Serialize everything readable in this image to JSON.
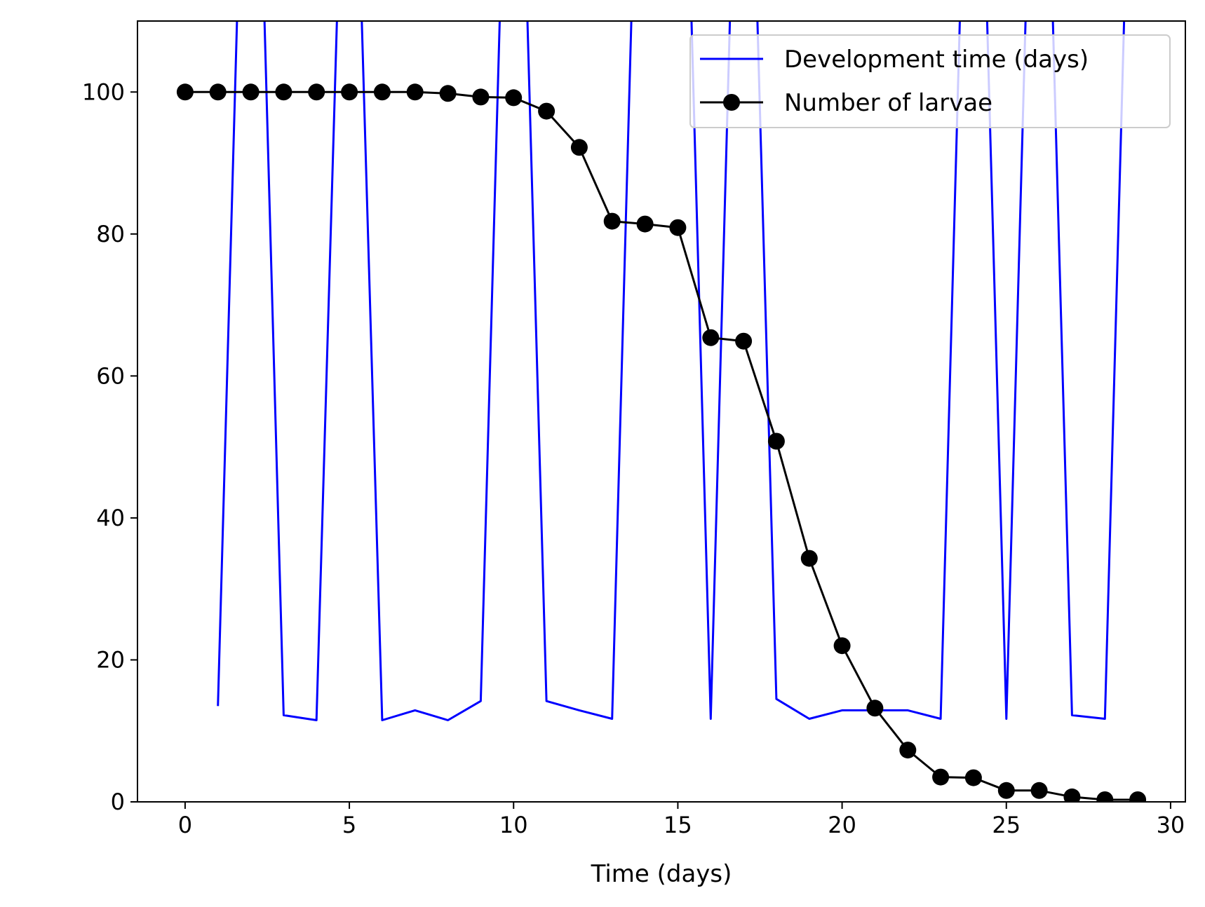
{
  "chart_data": {
    "type": "line",
    "title": "",
    "xlabel": "Time (days)",
    "ylabel": "",
    "xlim": [
      -1.45,
      30.45
    ],
    "ylim": [
      0,
      110
    ],
    "xticks": [
      0,
      5,
      10,
      15,
      20,
      25,
      30
    ],
    "yticks": [
      0,
      20,
      40,
      60,
      80,
      100
    ],
    "grid": false,
    "legend_position": "top-right",
    "series": [
      {
        "name": "Development time (days)",
        "color": "#0000ff",
        "marker": "none",
        "x": [
          1,
          2,
          3,
          4,
          5,
          6,
          7,
          8,
          9,
          10,
          11,
          12,
          13,
          14,
          15,
          16,
          17,
          18,
          19,
          20,
          21,
          22,
          23,
          24,
          25,
          26,
          27,
          28,
          29
        ],
        "y": [
          13.5,
          180,
          12.2,
          11.5,
          170,
          11.5,
          12.9,
          11.5,
          14.2,
          180,
          14.2,
          12.9,
          11.7,
          180,
          180,
          11.7,
          180,
          14.5,
          11.7,
          12.9,
          12.9,
          12.9,
          11.7,
          180,
          11.7,
          180,
          12.2,
          11.7,
          180
        ]
      },
      {
        "name": "Number of larvae",
        "color": "#000000",
        "marker": "circle",
        "x": [
          0,
          1,
          2,
          3,
          4,
          5,
          6,
          7,
          8,
          9,
          10,
          11,
          12,
          13,
          14,
          15,
          16,
          17,
          18,
          19,
          20,
          21,
          22,
          23,
          24,
          25,
          26,
          27,
          28,
          29
        ],
        "y": [
          100,
          100,
          100,
          100,
          100,
          100,
          100,
          100,
          99.8,
          99.3,
          99.2,
          97.3,
          92.2,
          81.8,
          81.4,
          80.9,
          65.4,
          64.9,
          50.8,
          34.3,
          22.0,
          13.2,
          7.3,
          3.5,
          3.4,
          1.6,
          1.6,
          0.7,
          0.3,
          0.3
        ]
      }
    ]
  }
}
